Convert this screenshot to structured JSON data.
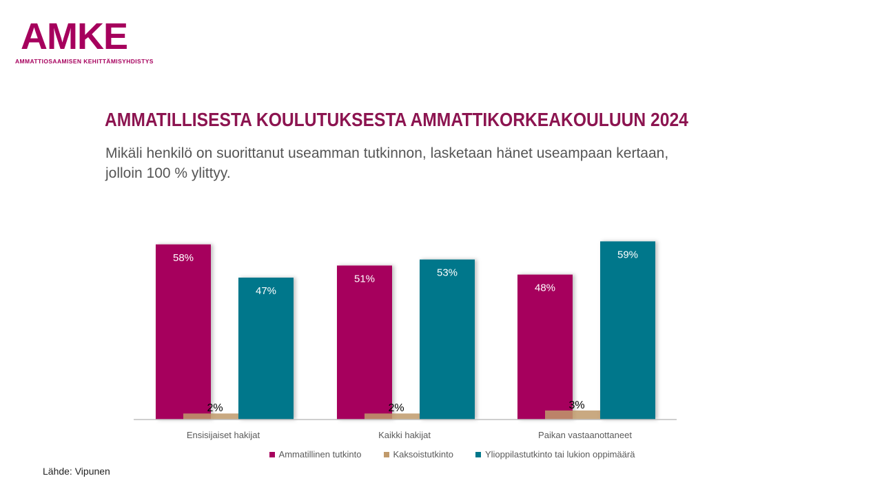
{
  "logo": {
    "text": "AMKE",
    "subtext": "AMMATTIOSAAMISEN KEHITTÄMISYHDISTYS"
  },
  "colors": {
    "brand": "#A6005D",
    "title": "#8C1450",
    "series": [
      "#A6005D",
      "#C09A6B",
      "#00778B"
    ]
  },
  "chart_data": {
    "type": "bar",
    "title": "AMMATILLISESTA KOULUTUKSESTA AMMATTIKORKEAKOULUUN 2024",
    "subtitle": "Mikäli henkilö on suorittanut useamman tutkinnon, lasketaan hänet useampaan kertaan, jolloin 100 % ylittyy.",
    "categories": [
      "Ensisijaiset hakijat",
      "Kaikki hakijat",
      "Paikan vastaanottaneet"
    ],
    "series": [
      {
        "name": "Ammatillinen tutkinto",
        "values": [
          58,
          51,
          48
        ],
        "labels": [
          "58%",
          "51%",
          "48%"
        ]
      },
      {
        "name": "Kaksoistutkinto",
        "values": [
          2,
          2,
          3
        ],
        "labels": [
          "2%",
          "2%",
          "3%"
        ]
      },
      {
        "name": "Ylioppilastutkinto tai lukion oppimäärä",
        "values": [
          47,
          53,
          59
        ],
        "labels": [
          "47%",
          "53%",
          "59%"
        ]
      }
    ],
    "ylim": [
      0,
      60
    ],
    "grid": false,
    "legend": "bottom",
    "xlabel": "",
    "ylabel": ""
  },
  "source": "Lähde: Vipunen"
}
